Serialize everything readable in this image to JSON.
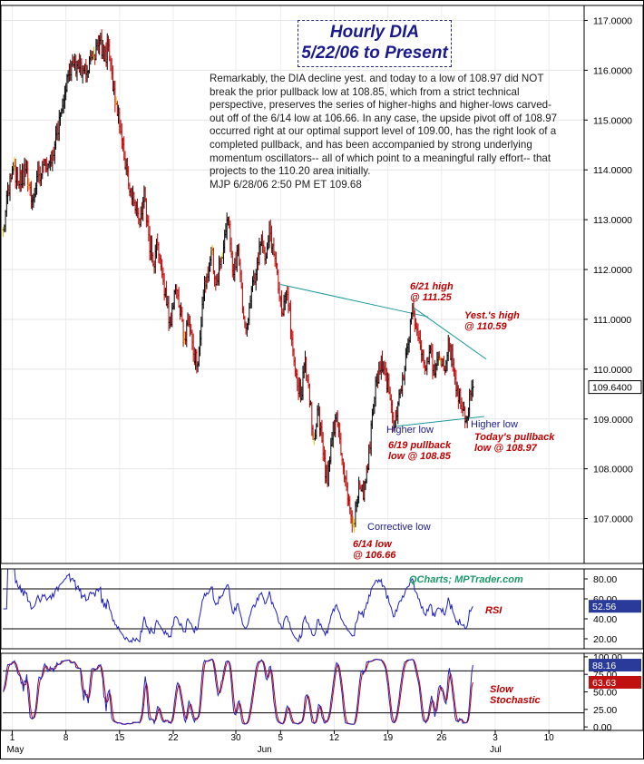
{
  "title": {
    "line1": "Hourly DIA",
    "line2": "5/22/06 to Present"
  },
  "commentary": {
    "text": "Remarkably, the DIA decline yest. and today to a low of 108.97 did NOT break the prior pullback low at 108.85, which from a strict technical perspective, preserves the series of higher-highs and higher-lows carved-out off of the 6/14 low at 106.66. In any case, the upside pivot off of 108.97 occurred right at our optimal support level of 109.00, has the right look of a completed pullback, and has been accompanied by strong underlying momentum oscillators-- all of which point to a meaningful rally effort-- that projects to the 110.20 area initially.",
    "signature": "MJP 6/28/06  2:50 PM ET  109.68"
  },
  "annotations": {
    "high_621": "6/21 high\n@ 111.25",
    "yest_high": "Yest.'s high\n@ 110.59",
    "higher_low_1": "Higher low",
    "higher_low_2": "Higher low",
    "pullback_619": "6/19 pullback\nlow @ 108.85",
    "todays_pullback": "Today's pullback\nlow @ 108.97",
    "corrective_low": "Corrective low",
    "low_614": "6/14 low\n@ 106.66"
  },
  "watermark": "QCharts; MPTrader.com",
  "colors": {
    "up_bar": "#000000",
    "down_bar": "#c00000",
    "unchanged_bar": "#e0c000",
    "trendline": "#1a9a9a",
    "oscillator": "#2020c0",
    "stoch_slow": "#c00000",
    "price_label_bg": "#ffffff",
    "rsi_label_bg": "#2a3a9a",
    "stoch_k_bg": "#2a3a9a",
    "stoch_d_bg": "#c01010",
    "annotation_red": "#c00000",
    "annotation_blue": "#1a1a8c"
  },
  "chart_data": [
    {
      "type": "ohlc",
      "title": "Hourly DIA",
      "subtitle": "5/22/06 to Present",
      "ylim": [
        106.1,
        117.3
      ],
      "y_ticks": [
        "117.0000",
        "116.0000",
        "115.0000",
        "114.0000",
        "113.0000",
        "112.0000",
        "111.0000",
        "110.0000",
        "109.0000",
        "108.0000",
        "107.0000"
      ],
      "last_price_label": "109.6400",
      "last_price": 109.64,
      "x_ticks": [
        {
          "label": "1",
          "i": 8
        },
        {
          "label": "8",
          "i": 56
        },
        {
          "label": "15",
          "i": 104
        },
        {
          "label": "22",
          "i": 152
        },
        {
          "label": "30",
          "i": 208
        },
        {
          "label": "5",
          "i": 248
        },
        {
          "label": "12",
          "i": 296
        },
        {
          "label": "19",
          "i": 344
        },
        {
          "label": "26",
          "i": 392
        },
        {
          "label": "3",
          "i": 440
        },
        {
          "label": "10",
          "i": 488
        }
      ],
      "month_labels": [
        {
          "label": "May",
          "i": 8
        },
        {
          "label": "Jun",
          "i": 232
        },
        {
          "label": "Jul",
          "i": 440
        }
      ],
      "n_slots": 520,
      "waypoints": [
        [
          0,
          112.8
        ],
        [
          4,
          113.6
        ],
        [
          8,
          114.0
        ],
        [
          14,
          113.7
        ],
        [
          20,
          114.0
        ],
        [
          26,
          113.4
        ],
        [
          32,
          113.9
        ],
        [
          40,
          114.1
        ],
        [
          46,
          114.5
        ],
        [
          52,
          115.2
        ],
        [
          58,
          115.9
        ],
        [
          66,
          116.1
        ],
        [
          72,
          116.0
        ],
        [
          80,
          116.3
        ],
        [
          86,
          116.6
        ],
        [
          90,
          116.2
        ],
        [
          94,
          116.5
        ],
        [
          98,
          115.6
        ],
        [
          102,
          115.1
        ],
        [
          106,
          114.6
        ],
        [
          110,
          114.1
        ],
        [
          114,
          113.6
        ],
        [
          118,
          113.2
        ],
        [
          122,
          112.9
        ],
        [
          126,
          113.6
        ],
        [
          130,
          112.7
        ],
        [
          134,
          112.1
        ],
        [
          138,
          112.5
        ],
        [
          142,
          111.9
        ],
        [
          146,
          111.3
        ],
        [
          150,
          110.9
        ],
        [
          154,
          111.6
        ],
        [
          158,
          111.1
        ],
        [
          162,
          110.6
        ],
        [
          166,
          110.9
        ],
        [
          170,
          110.3
        ],
        [
          174,
          110.1
        ],
        [
          178,
          111.3
        ],
        [
          182,
          111.9
        ],
        [
          186,
          112.4
        ],
        [
          190,
          111.7
        ],
        [
          194,
          112.1
        ],
        [
          198,
          112.7
        ],
        [
          202,
          112.9
        ],
        [
          206,
          111.9
        ],
        [
          210,
          112.4
        ],
        [
          214,
          111.2
        ],
        [
          218,
          110.9
        ],
        [
          222,
          111.6
        ],
        [
          226,
          111.9
        ],
        [
          230,
          112.5
        ],
        [
          234,
          112.2
        ],
        [
          238,
          112.9
        ],
        [
          242,
          112.3
        ],
        [
          246,
          111.6
        ],
        [
          250,
          111.1
        ],
        [
          254,
          111.5
        ],
        [
          258,
          110.6
        ],
        [
          262,
          109.9
        ],
        [
          266,
          109.4
        ],
        [
          270,
          110.2
        ],
        [
          274,
          109.3
        ],
        [
          278,
          108.6
        ],
        [
          282,
          109.2
        ],
        [
          286,
          108.3
        ],
        [
          290,
          107.7
        ],
        [
          294,
          108.6
        ],
        [
          298,
          109.1
        ],
        [
          302,
          108.3
        ],
        [
          306,
          107.8
        ],
        [
          310,
          107.2
        ],
        [
          314,
          106.9
        ],
        [
          318,
          107.7
        ],
        [
          322,
          107.4
        ],
        [
          326,
          108.0
        ],
        [
          330,
          109.1
        ],
        [
          334,
          109.8
        ],
        [
          338,
          110.2
        ],
        [
          342,
          109.9
        ],
        [
          346,
          109.4
        ],
        [
          350,
          108.85
        ],
        [
          354,
          109.5
        ],
        [
          358,
          109.8
        ],
        [
          362,
          110.5
        ],
        [
          366,
          111.25
        ],
        [
          370,
          110.8
        ],
        [
          374,
          110.3
        ],
        [
          378,
          110.0
        ],
        [
          382,
          110.4
        ],
        [
          386,
          109.9
        ],
        [
          390,
          110.2
        ],
        [
          394,
          110.0
        ],
        [
          398,
          110.59
        ],
        [
          402,
          110.1
        ],
        [
          406,
          109.6
        ],
        [
          410,
          109.2
        ],
        [
          414,
          108.97
        ],
        [
          418,
          109.5
        ],
        [
          420,
          109.64
        ]
      ]
    },
    {
      "type": "line",
      "title": "RSI",
      "ylim": [
        10,
        90
      ],
      "y_ticks": [
        "80.00",
        "60.00",
        "40.00",
        "20.00"
      ],
      "guide_levels": [
        70,
        30
      ],
      "last_value_label": "52.56",
      "last_value": 52.56
    },
    {
      "type": "line",
      "title": "Slow Stochastic",
      "ylim": [
        -5,
        105
      ],
      "y_ticks": [
        "100.00",
        "75.00",
        "50.00",
        "25.00",
        "0.00"
      ],
      "guide_levels": [
        80,
        20
      ],
      "last_k_label": "88.16",
      "last_k": 88.16,
      "last_d_label": "63.63",
      "last_d": 63.63
    }
  ]
}
